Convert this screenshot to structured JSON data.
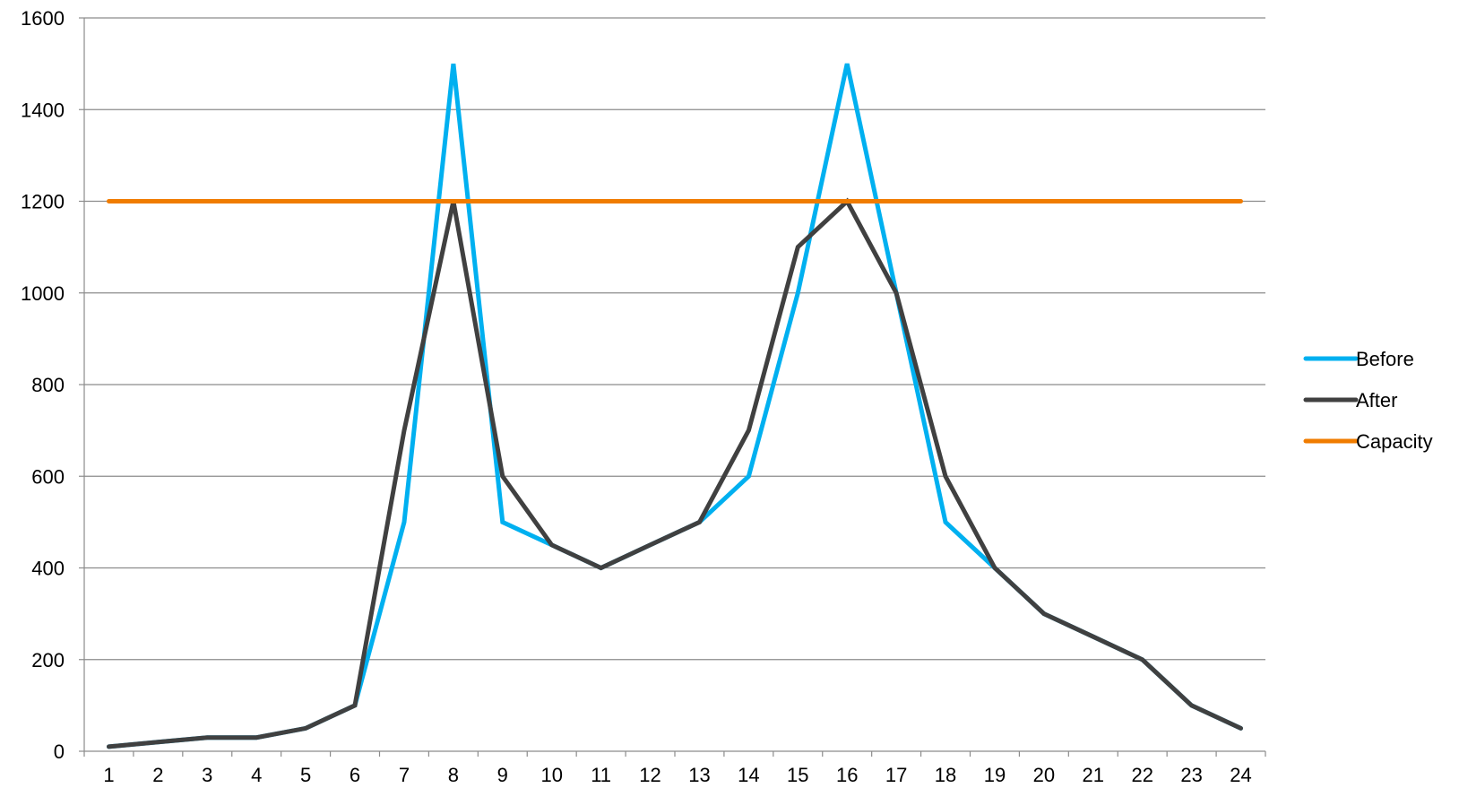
{
  "chart_data": {
    "type": "line",
    "title": "",
    "xlabel": "",
    "ylabel": "",
    "x": [
      "1",
      "2",
      "3",
      "4",
      "5",
      "6",
      "7",
      "8",
      "9",
      "10",
      "11",
      "12",
      "13",
      "14",
      "15",
      "16",
      "17",
      "18",
      "19",
      "20",
      "21",
      "22",
      "23",
      "24"
    ],
    "ylim": [
      0,
      1600
    ],
    "yticks": [
      0,
      200,
      400,
      600,
      800,
      1000,
      1200,
      1400,
      1600
    ],
    "grid": "horizontal",
    "legend_position": "right",
    "series": [
      {
        "name": "Before",
        "color": "#00b0f0",
        "values": [
          10,
          20,
          30,
          30,
          50,
          100,
          500,
          1500,
          500,
          450,
          400,
          450,
          500,
          600,
          1000,
          1500,
          1000,
          500,
          400,
          300,
          250,
          200,
          100,
          50
        ]
      },
      {
        "name": "After",
        "color": "#404040",
        "values": [
          10,
          20,
          30,
          30,
          50,
          100,
          700,
          1200,
          600,
          450,
          400,
          450,
          500,
          700,
          1100,
          1200,
          1000,
          600,
          400,
          300,
          250,
          200,
          100,
          50
        ]
      },
      {
        "name": "Capacity",
        "color": "#f07c00",
        "values": [
          1200,
          1200,
          1200,
          1200,
          1200,
          1200,
          1200,
          1200,
          1200,
          1200,
          1200,
          1200,
          1200,
          1200,
          1200,
          1200,
          1200,
          1200,
          1200,
          1200,
          1200,
          1200,
          1200,
          1200
        ]
      }
    ]
  }
}
